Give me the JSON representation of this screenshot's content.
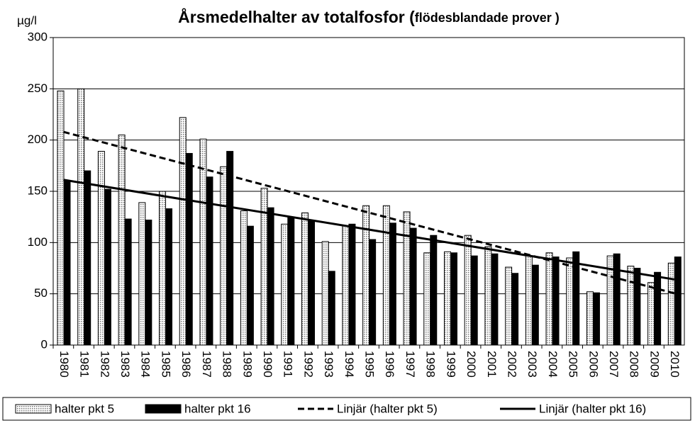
{
  "chart_data": {
    "type": "bar",
    "title": "Årsmedelhalter av totalfosfor (",
    "title_small": "flödesblandade prover )",
    "y_label": "µg/l",
    "categories": [
      "1980",
      "1981",
      "1982",
      "1983",
      "1984",
      "1985",
      "1986",
      "1987",
      "1988",
      "1989",
      "1990",
      "1991",
      "1992",
      "1993",
      "1994",
      "1995",
      "1996",
      "1997",
      "1998",
      "1999",
      "2000",
      "2001",
      "2002",
      "2003",
      "2004",
      "2005",
      "2006",
      "2007",
      "2008",
      "2009",
      "2010"
    ],
    "series": [
      {
        "name": "halter pkt 5",
        "color": "#ffffff",
        "pattern": "dots",
        "values": [
          248,
          250,
          189,
          205,
          139,
          150,
          222,
          201,
          174,
          131,
          153,
          118,
          129,
          101,
          116,
          136,
          136,
          130,
          90,
          91,
          107,
          96,
          76,
          87,
          90,
          85,
          52,
          87,
          77,
          61,
          80
        ]
      },
      {
        "name": "halter pkt 16",
        "color": "#000000",
        "values": [
          160,
          170,
          152,
          123,
          122,
          133,
          187,
          164,
          189,
          116,
          134,
          125,
          121,
          72,
          118,
          103,
          119,
          114,
          107,
          90,
          87,
          89,
          70,
          78,
          86,
          91,
          51,
          89,
          75,
          71,
          86
        ]
      }
    ],
    "trendlines": [
      {
        "name": "Linjär (halter pkt 5)",
        "of_series": 0,
        "dash": true,
        "color": "#000000"
      },
      {
        "name": "Linjär (halter pkt 16)",
        "of_series": 1,
        "dash": false,
        "color": "#000000"
      }
    ],
    "ylim": [
      0,
      300
    ],
    "yticks": [
      0,
      50,
      100,
      150,
      200,
      250,
      300
    ],
    "grid": true,
    "legend": "bottom"
  }
}
